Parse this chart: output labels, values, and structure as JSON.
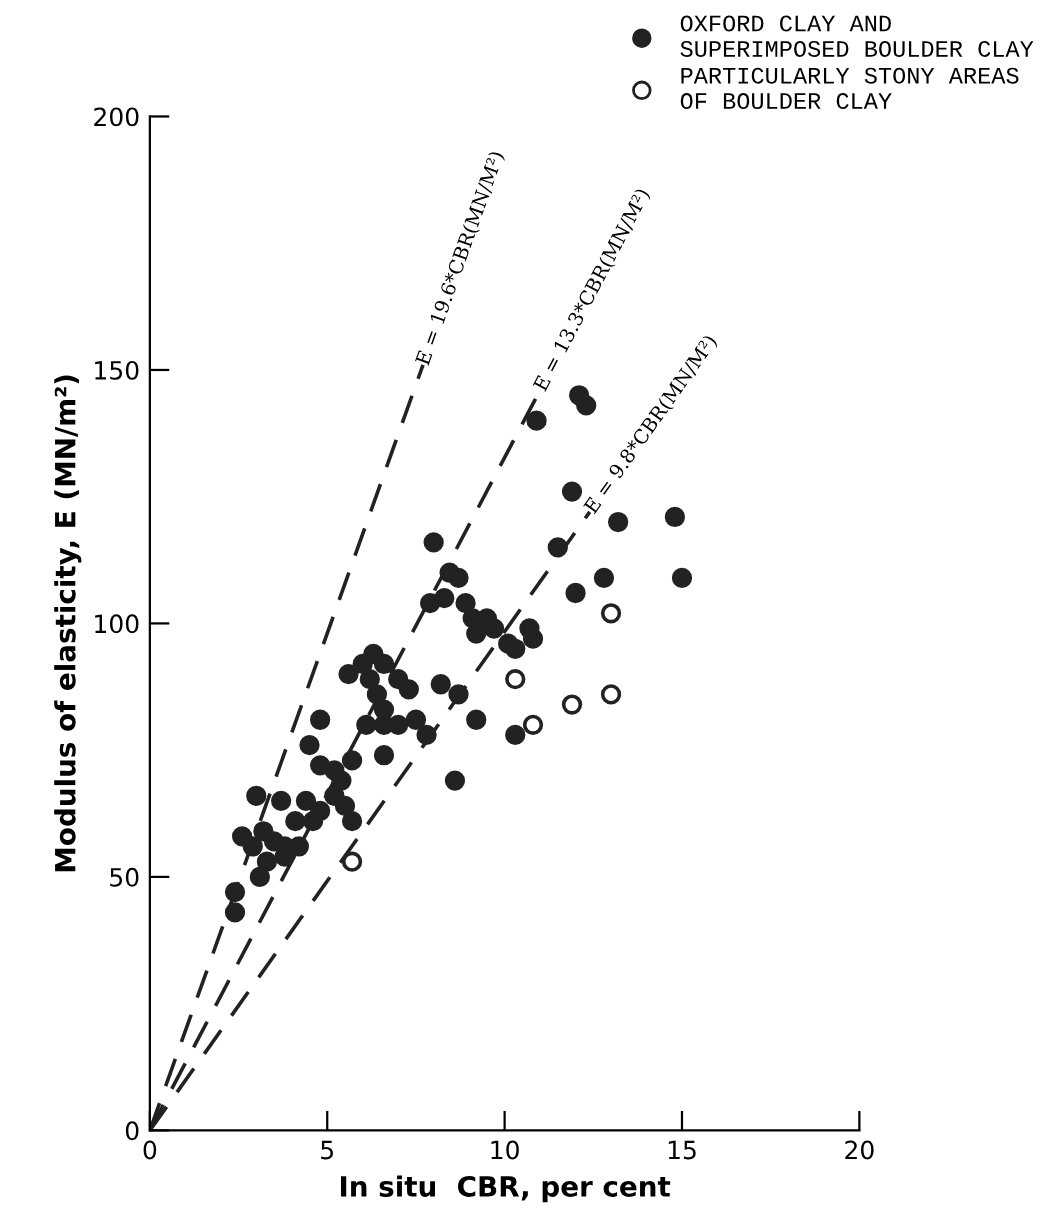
{
  "chart_data": {
    "type": "scatter",
    "xlabel": "In situ  CBR, per cent",
    "ylabel": "Modulus of elasticity, E (MN/m²)",
    "xlim": [
      0,
      20
    ],
    "ylim": [
      0,
      200
    ],
    "xticks": [
      0,
      5,
      10,
      15,
      20
    ],
    "yticks": [
      0,
      50,
      100,
      150,
      200
    ],
    "grid": false,
    "legend": "top right",
    "marker": "circle",
    "series": [
      {
        "name": "OXFORD CLAY AND\nSUPERIMPOSED BOULDER CLAY",
        "color": "#222222",
        "x": [
          8.0,
          8.45,
          8.7,
          7.9,
          8.3,
          8.9,
          9.1,
          9.5,
          9.7,
          9.2,
          10.3,
          6.3,
          6.6,
          6.0,
          5.6,
          6.2,
          7.0,
          6.4,
          7.3,
          8.2,
          8.7,
          6.6,
          4.8,
          6.1,
          6.6,
          7.0,
          7.5,
          7.8,
          9.2,
          6.6,
          4.5,
          4.8,
          5.2,
          5.7,
          5.4,
          5.2,
          4.4,
          4.8,
          5.5,
          5.7,
          3.0,
          3.7,
          4.1,
          4.6,
          2.6,
          3.2,
          3.5,
          3.8,
          2.9,
          4.2,
          3.3,
          3.8,
          3.1,
          2.4,
          2.4,
          8.6,
          10.3,
          12.1,
          12.3,
          10.9,
          11.9,
          13.2,
          14.8,
          11.5,
          12.8,
          12.0,
          15.0,
          10.7,
          10.1,
          10.8
        ],
        "values": [
          116,
          110,
          109,
          104,
          105,
          104,
          101,
          101,
          99,
          98,
          95,
          94,
          92,
          92,
          90,
          89,
          89,
          86,
          87,
          88,
          86,
          83,
          81,
          80,
          80,
          80,
          81,
          78,
          81,
          74,
          76,
          72,
          71,
          73,
          69,
          66,
          65,
          63,
          64,
          61,
          66,
          65,
          61,
          61,
          58,
          59,
          57,
          56,
          56,
          56,
          53,
          54,
          50,
          47,
          43,
          69,
          78,
          145,
          143,
          140,
          126,
          120,
          121,
          115,
          109,
          106,
          109,
          99,
          96,
          97
        ]
      },
      {
        "name": "PARTICULARLY STONY AREAS\nOF BOULDER CLAY",
        "color": "#222222",
        "x": [
          5.7,
          10.3,
          10.8,
          11.9,
          13.0,
          13.0
        ],
        "values": [
          53,
          89,
          80,
          84,
          86,
          102
        ]
      },
      {
        "name": "E = 19.6*CBR(MN/M²)",
        "type": "line",
        "marker": "none",
        "line_style": "dashed",
        "color": "#222222",
        "x": [
          0,
          7.7
        ],
        "values": [
          0,
          151
        ]
      },
      {
        "name": "E = 13.3*CBR(MN/M²)",
        "type": "line",
        "marker": "none",
        "line_style": "dashed",
        "color": "#222222",
        "x": [
          0,
          11.0
        ],
        "values": [
          0,
          146
        ]
      },
      {
        "name": "E = 9.8*CBR(MN/M²)",
        "type": "line",
        "marker": "none",
        "line_style": "dashed",
        "color": "#222222",
        "x": [
          0,
          12.4
        ],
        "values": [
          0,
          122
        ]
      }
    ]
  }
}
